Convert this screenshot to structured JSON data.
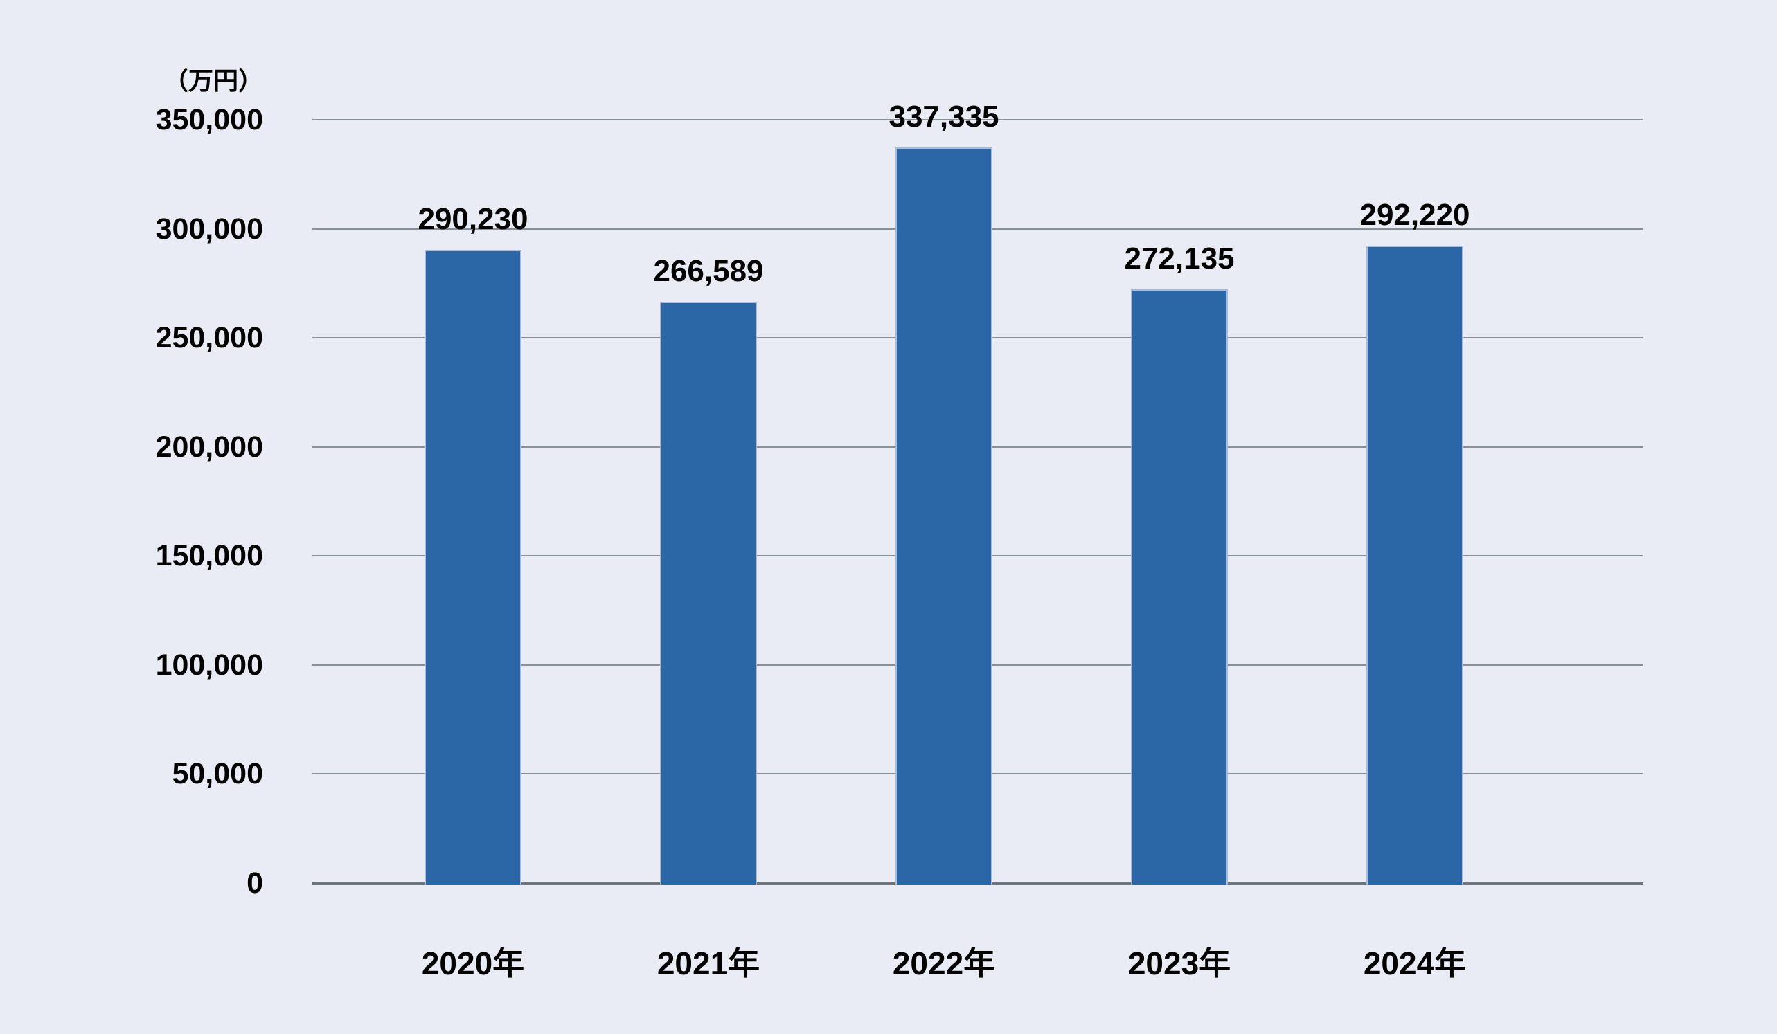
{
  "background_color": "#E9ECF4",
  "chart_data": {
    "type": "bar",
    "title": "",
    "unit_label": "（万円）",
    "categories": [
      "2020年",
      "2021年",
      "2022年",
      "2023年",
      "2024年"
    ],
    "values": [
      290230,
      266589,
      337335,
      272135,
      292220
    ],
    "data_labels": [
      "290,230",
      "266,589",
      "337,335",
      "272,135",
      "292,220"
    ],
    "y_ticks": [
      0,
      50000,
      100000,
      150000,
      200000,
      250000,
      300000,
      350000
    ],
    "y_tick_labels": [
      "0",
      "50,000",
      "100,000",
      "150,000",
      "200,000",
      "250,000",
      "300,000",
      "350,000"
    ],
    "ylim": [
      0,
      350000
    ],
    "grid": true,
    "legend": "none",
    "bar_color": "#2B66A6",
    "bar_edge_color": "#A9BBD9",
    "gridline_color": "#8B8F98",
    "baseline_color": "#6F747C",
    "text_color": "#000000"
  }
}
